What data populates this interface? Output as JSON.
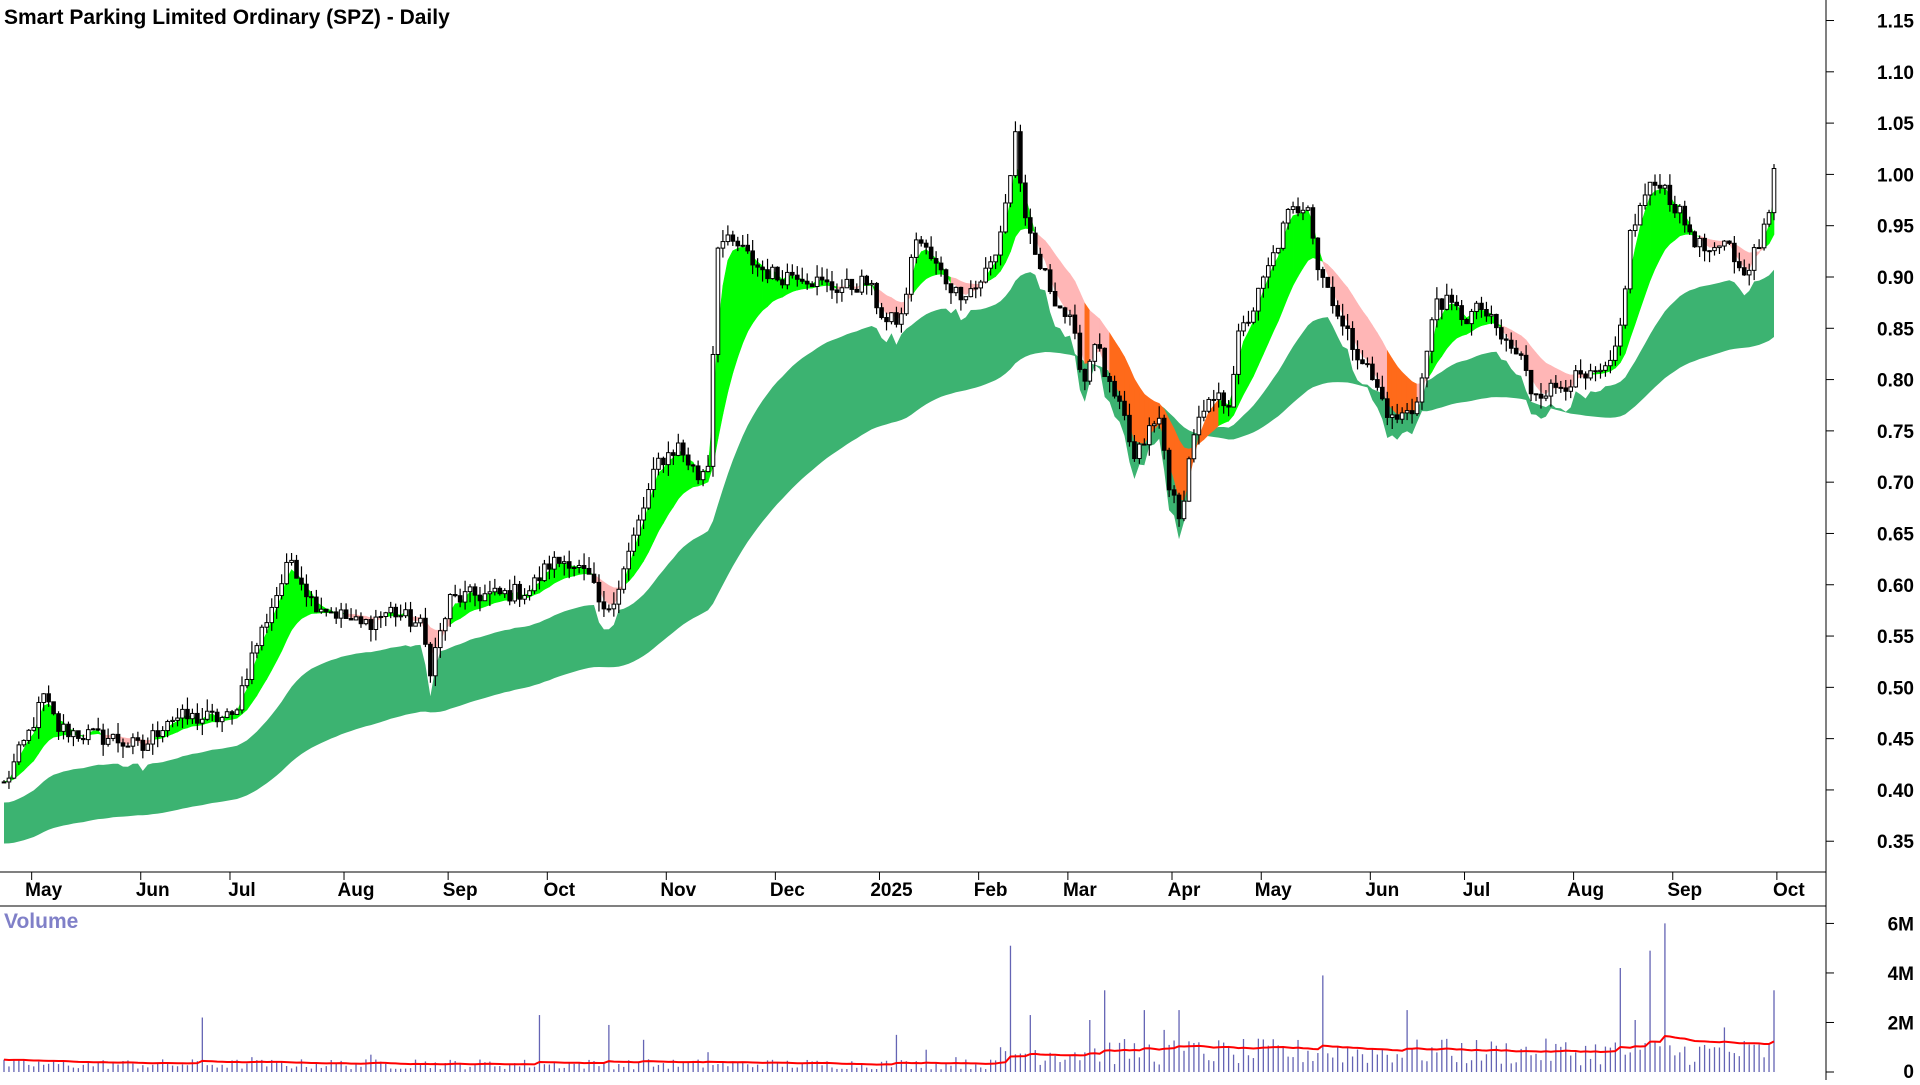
{
  "chart_data": {
    "type": "candlestick",
    "title": "Smart Parking Limited Ordinary (SPZ) - Daily",
    "price_axis": {
      "ylim": [
        0.32,
        1.17
      ],
      "ticks": [
        "0.35",
        "0.40",
        "0.45",
        "0.50",
        "0.55",
        "0.60",
        "0.65",
        "0.70",
        "0.75",
        "0.80",
        "0.85",
        "0.90",
        "0.95",
        "1.00",
        "1.05",
        "1.10",
        "1.15"
      ]
    },
    "x_axis": {
      "labels": [
        "May",
        "Jun",
        "Jul",
        "Aug",
        "Sep",
        "Oct",
        "Nov",
        "Dec",
        "2025",
        "Feb",
        "Mar",
        "Apr",
        "May",
        "Jun",
        "Jul",
        "Aug",
        "Sep",
        "Oct"
      ],
      "label_index": [
        8,
        30,
        48,
        71,
        92,
        112,
        136,
        158,
        179,
        199,
        217,
        238,
        256,
        278,
        297,
        319,
        339,
        360
      ]
    },
    "price_keypoints": [
      [
        0,
        0.405
      ],
      [
        5,
        0.455
      ],
      [
        8,
        0.49
      ],
      [
        11,
        0.46
      ],
      [
        15,
        0.455
      ],
      [
        22,
        0.45
      ],
      [
        28,
        0.44
      ],
      [
        33,
        0.47
      ],
      [
        40,
        0.47
      ],
      [
        46,
        0.47
      ],
      [
        50,
        0.53
      ],
      [
        54,
        0.58
      ],
      [
        58,
        0.625
      ],
      [
        62,
        0.585
      ],
      [
        66,
        0.575
      ],
      [
        72,
        0.56
      ],
      [
        78,
        0.575
      ],
      [
        84,
        0.56
      ],
      [
        86,
        0.52
      ],
      [
        90,
        0.585
      ],
      [
        95,
        0.59
      ],
      [
        100,
        0.59
      ],
      [
        106,
        0.595
      ],
      [
        110,
        0.62
      ],
      [
        114,
        0.625
      ],
      [
        118,
        0.605
      ],
      [
        121,
        0.57
      ],
      [
        124,
        0.6
      ],
      [
        128,
        0.66
      ],
      [
        132,
        0.72
      ],
      [
        136,
        0.735
      ],
      [
        140,
        0.705
      ],
      [
        142,
        0.72
      ],
      [
        144,
        0.935
      ],
      [
        148,
        0.93
      ],
      [
        152,
        0.91
      ],
      [
        156,
        0.9
      ],
      [
        160,
        0.905
      ],
      [
        164,
        0.895
      ],
      [
        167,
        0.89
      ],
      [
        170,
        0.89
      ],
      [
        174,
        0.895
      ],
      [
        178,
        0.855
      ],
      [
        181,
        0.86
      ],
      [
        184,
        0.94
      ],
      [
        188,
        0.91
      ],
      [
        192,
        0.885
      ],
      [
        196,
        0.89
      ],
      [
        200,
        0.92
      ],
      [
        203,
        1.0
      ],
      [
        204,
        1.04
      ],
      [
        206,
        0.95
      ],
      [
        208,
        0.92
      ],
      [
        212,
        0.88
      ],
      [
        215,
        0.855
      ],
      [
        218,
        0.8
      ],
      [
        220,
        0.84
      ],
      [
        223,
        0.79
      ],
      [
        226,
        0.76
      ],
      [
        228,
        0.72
      ],
      [
        231,
        0.75
      ],
      [
        233,
        0.76
      ],
      [
        235,
        0.7
      ],
      [
        237,
        0.66
      ],
      [
        240,
        0.75
      ],
      [
        244,
        0.78
      ],
      [
        247,
        0.78
      ],
      [
        249,
        0.84
      ],
      [
        252,
        0.87
      ],
      [
        256,
        0.92
      ],
      [
        259,
        0.96
      ],
      [
        263,
        0.975
      ],
      [
        265,
        0.91
      ],
      [
        268,
        0.88
      ],
      [
        270,
        0.85
      ],
      [
        274,
        0.82
      ],
      [
        278,
        0.78
      ],
      [
        280,
        0.76
      ],
      [
        284,
        0.77
      ],
      [
        286,
        0.8
      ],
      [
        289,
        0.88
      ],
      [
        292,
        0.87
      ],
      [
        295,
        0.86
      ],
      [
        298,
        0.87
      ],
      [
        302,
        0.84
      ],
      [
        306,
        0.82
      ],
      [
        308,
        0.79
      ],
      [
        312,
        0.79
      ],
      [
        316,
        0.8
      ],
      [
        320,
        0.8
      ],
      [
        324,
        0.81
      ],
      [
        326,
        0.85
      ],
      [
        328,
        0.94
      ],
      [
        331,
        0.98
      ],
      [
        334,
        0.995
      ],
      [
        338,
        0.96
      ],
      [
        342,
        0.93
      ],
      [
        345,
        0.92
      ],
      [
        348,
        0.935
      ],
      [
        350,
        0.905
      ],
      [
        352,
        0.915
      ],
      [
        354,
        0.93
      ],
      [
        356,
        0.96
      ],
      [
        357,
        1.01
      ]
    ],
    "volume_axis": {
      "ylim": [
        0,
        6.3
      ],
      "ticks": [
        "0",
        "2M",
        "4M",
        "6M"
      ],
      "label": "Volume"
    },
    "volume_spikes": [
      [
        40,
        2.2
      ],
      [
        50,
        0.6
      ],
      [
        74,
        0.7
      ],
      [
        83,
        0.5
      ],
      [
        108,
        2.3
      ],
      [
        122,
        1.9
      ],
      [
        129,
        1.3
      ],
      [
        142,
        0.8
      ],
      [
        180,
        1.5
      ],
      [
        186,
        0.9
      ],
      [
        192,
        0.6
      ],
      [
        203,
        5.1
      ],
      [
        207,
        2.3
      ],
      [
        219,
        2.1
      ],
      [
        222,
        3.3
      ],
      [
        230,
        2.5
      ],
      [
        234,
        1.7
      ],
      [
        237,
        2.5
      ],
      [
        241,
        1.2
      ],
      [
        248,
        0.7
      ],
      [
        266,
        3.9
      ],
      [
        283,
        2.5
      ],
      [
        290,
        1.3
      ],
      [
        326,
        4.2
      ],
      [
        329,
        2.1
      ],
      [
        332,
        4.9
      ],
      [
        335,
        6.0
      ],
      [
        347,
        1.8
      ],
      [
        357,
        3.3
      ]
    ],
    "price_count": 358,
    "legend_note": "",
    "colors": {
      "short_band_up": "#00ff00",
      "short_band_down_compressed": "#ffb6b6",
      "band_overlap": "#ff6a1a",
      "long_band": "#3cb371",
      "volume_bars": "#6464b4",
      "volume_ma": "#ff0000",
      "candles": "#000000"
    }
  }
}
